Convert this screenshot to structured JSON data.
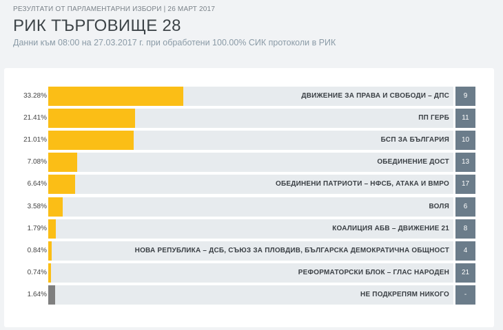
{
  "header": {
    "eyebrow": "РЕЗУЛТАТИ ОТ ПАРЛАМЕНТАРНИ ИЗБОРИ | 26 МАРТ 2017",
    "title": "РИК ТЪРГОВИЩЕ 28",
    "subtitle": "Данни към 08:00 на 27.03.2017 г. при обработени 100.00% СИК протоколи в РИК"
  },
  "colors": {
    "party_bar": "#fbbe16",
    "none_bar": "#7f7f7f",
    "track": "#e7ebee",
    "seats_badge": "#6b7c8a"
  },
  "chart_data": {
    "type": "bar",
    "orientation": "horizontal",
    "xlim": [
      0,
      100
    ],
    "categories": [
      "ДВИЖЕНИЕ ЗА ПРАВА И СВОБОДИ – ДПС",
      "ПП ГЕРБ",
      "БСП ЗА БЪЛГАРИЯ",
      "ОБЕДИНЕНИЕ ДОСТ",
      "ОБЕДИНЕНИ ПАТРИОТИ – НФСБ, АТАКА И ВМРО",
      "ВОЛЯ",
      "КОАЛИЦИЯ АБВ – ДВИЖЕНИЕ 21",
      "НОВА РЕПУБЛИКА – ДСБ, СЪЮЗ ЗА ПЛОВДИВ, БЪЛГАРСКА ДЕМОКРАТИЧНА ОБЩНОСТ",
      "РЕФОРМАТОРСКИ БЛОК – ГЛАС НАРОДЕН",
      "НЕ ПОДКРЕПЯМ НИКОГО"
    ],
    "values": [
      33.28,
      21.41,
      21.01,
      7.08,
      6.64,
      3.58,
      1.79,
      0.84,
      0.74,
      1.64
    ],
    "value_labels": [
      "33.28%",
      "21.41%",
      "21.01%",
      "7.08%",
      "6.64%",
      "3.58%",
      "1.79%",
      "0.84%",
      "0.74%",
      "1.64%"
    ],
    "list_numbers": [
      "9",
      "11",
      "10",
      "13",
      "17",
      "6",
      "8",
      "4",
      "21",
      "-"
    ]
  }
}
